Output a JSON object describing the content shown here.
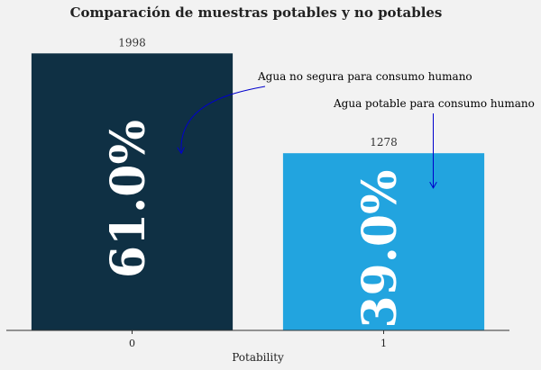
{
  "chart_data": {
    "type": "bar",
    "title": "Comparación de muestras potables y no potables",
    "xlabel": "Potability",
    "ylabel": "",
    "categories": [
      "0",
      "1"
    ],
    "values": [
      1998,
      1278
    ],
    "bar_labels": [
      "1998",
      "1278"
    ],
    "percent_labels": [
      "61.0%",
      "39.0%"
    ],
    "colors": [
      "#0f3044",
      "#22a4df"
    ],
    "ylim": [
      0,
      2000
    ],
    "grid": false,
    "legend": "none",
    "annotations": [
      {
        "text": "Agua no segura para consumo humano",
        "target_category": "0",
        "target_value": 1270,
        "color": "#0000cc"
      },
      {
        "text": "Agua potable para consumo humano",
        "target_category": "1",
        "target_value": 1020,
        "color": "#0000cc"
      }
    ]
  }
}
